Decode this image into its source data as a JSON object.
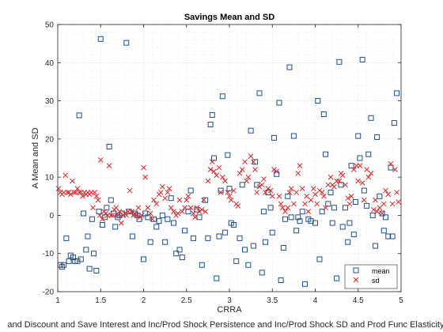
{
  "chart_data": {
    "type": "scatter",
    "title": "Savings Mean and SD",
    "xlabel": "CRRA",
    "xlabel2": "and Discount and Save Interest and Inc/Prod Shock Persistence and Inc/Prod Shock SD and Prod Func Elasticity a",
    "ylabel": "A Mean and SD",
    "xlim": [
      1,
      5
    ],
    "ylim": [
      -20,
      50
    ],
    "x_ticks": [
      "1",
      "1.5",
      "2",
      "2.5",
      "3",
      "3.5",
      "4",
      "4.5",
      "5"
    ],
    "y_ticks": [
      "-20",
      "-10",
      "0",
      "10",
      "20",
      "30",
      "40",
      "50"
    ],
    "grid": "on (major and minor, dotted)",
    "legend_position": "bottom-right",
    "series": [
      {
        "name": "mean",
        "marker": "square",
        "color": "#1f4e8c",
        "points": [
          [
            1.03,
            -13
          ],
          [
            1.05,
            -13.5
          ],
          [
            1.07,
            -13
          ],
          [
            1.1,
            -6
          ],
          [
            1.13,
            -12
          ],
          [
            1.15,
            -10.5
          ],
          [
            1.18,
            -11
          ],
          [
            1.2,
            -12
          ],
          [
            1.23,
            -12
          ],
          [
            1.25,
            26.2
          ],
          [
            1.27,
            -11.5
          ],
          [
            1.3,
            0.5
          ],
          [
            1.33,
            -9
          ],
          [
            1.35,
            -5.5
          ],
          [
            1.37,
            -14
          ],
          [
            1.4,
            -1
          ],
          [
            1.42,
            -10
          ],
          [
            1.45,
            -14.5
          ],
          [
            1.48,
            1
          ],
          [
            1.5,
            46.2
          ],
          [
            1.52,
            -2.5
          ],
          [
            1.55,
            -0.5
          ],
          [
            1.57,
            2
          ],
          [
            1.6,
            18
          ],
          [
            1.62,
            4
          ],
          [
            1.65,
            0.5
          ],
          [
            1.67,
            -3
          ],
          [
            1.7,
            -0.5
          ],
          [
            1.72,
            0
          ],
          [
            1.75,
            0.5
          ],
          [
            1.8,
            45.2
          ],
          [
            1.83,
            1
          ],
          [
            1.87,
            -5.5
          ],
          [
            1.9,
            0.5
          ],
          [
            1.93,
            0
          ],
          [
            1.95,
            -1
          ],
          [
            2.0,
            -11.5
          ],
          [
            2.02,
            0.5
          ],
          [
            2.05,
            -0.5
          ],
          [
            2.08,
            -7
          ],
          [
            2.12,
            -1
          ],
          [
            2.15,
            -3
          ],
          [
            2.18,
            -1.5
          ],
          [
            2.22,
            0
          ],
          [
            2.25,
            -7
          ],
          [
            2.28,
            -1
          ],
          [
            2.32,
            4.5
          ],
          [
            2.35,
            -2
          ],
          [
            2.38,
            -10
          ],
          [
            2.42,
            -9
          ],
          [
            2.45,
            -11
          ],
          [
            2.48,
            -4
          ],
          [
            2.52,
            1
          ],
          [
            2.55,
            6.5
          ],
          [
            2.58,
            -6
          ],
          [
            2.62,
            1.5
          ],
          [
            2.65,
            -0.5
          ],
          [
            2.68,
            -13
          ],
          [
            2.72,
            4
          ],
          [
            2.75,
            -6
          ],
          [
            2.78,
            23.8
          ],
          [
            2.8,
            26.3
          ],
          [
            2.82,
            15
          ],
          [
            2.85,
            -16.5
          ],
          [
            2.88,
            -5.5
          ],
          [
            2.9,
            6.5
          ],
          [
            2.92,
            31.2
          ],
          [
            2.95,
            -4.5
          ],
          [
            2.98,
            15.8
          ],
          [
            3.0,
            7
          ],
          [
            3.02,
            -2
          ],
          [
            3.05,
            -2.5
          ],
          [
            3.08,
            -12
          ],
          [
            3.12,
            -6
          ],
          [
            3.15,
            8
          ],
          [
            3.18,
            -9
          ],
          [
            3.22,
            -13
          ],
          [
            3.25,
            22.2
          ],
          [
            3.28,
            -8
          ],
          [
            3.3,
            14
          ],
          [
            3.32,
            8
          ],
          [
            3.35,
            32
          ],
          [
            3.38,
            -15
          ],
          [
            3.4,
            1
          ],
          [
            3.42,
            -7
          ],
          [
            3.45,
            6
          ],
          [
            3.48,
            2
          ],
          [
            3.5,
            -4.5
          ],
          [
            3.52,
            20.3
          ],
          [
            3.55,
            10.8
          ],
          [
            3.58,
            29.5
          ],
          [
            3.6,
            -17
          ],
          [
            3.63,
            -8.5
          ],
          [
            3.65,
            -1
          ],
          [
            3.68,
            5
          ],
          [
            3.7,
            38.8
          ],
          [
            3.72,
            -0.5
          ],
          [
            3.75,
            20.8
          ],
          [
            3.78,
            -4
          ],
          [
            3.8,
            -0.5
          ],
          [
            3.82,
            -1.5
          ],
          [
            3.85,
            1
          ],
          [
            3.88,
            -18
          ],
          [
            3.92,
            -1
          ],
          [
            3.95,
            -1.5
          ],
          [
            4.0,
            -2
          ],
          [
            4.03,
            30
          ],
          [
            4.05,
            -11.5
          ],
          [
            4.08,
            1
          ],
          [
            4.1,
            26.5
          ],
          [
            4.12,
            16
          ],
          [
            4.15,
            3
          ],
          [
            4.18,
            6
          ],
          [
            4.2,
            -2
          ],
          [
            4.22,
            2
          ],
          [
            4.25,
            -16.5
          ],
          [
            4.28,
            40.2
          ],
          [
            4.3,
            8
          ],
          [
            4.32,
            -3
          ],
          [
            4.35,
            2
          ],
          [
            4.38,
            -7
          ],
          [
            4.4,
            -2
          ],
          [
            4.42,
            13
          ],
          [
            4.45,
            -5
          ],
          [
            4.47,
            3.5
          ],
          [
            4.5,
            20.8
          ],
          [
            4.52,
            15
          ],
          [
            4.55,
            40.8
          ],
          [
            4.57,
            6.5
          ],
          [
            4.6,
            2.5
          ],
          [
            4.62,
            16
          ],
          [
            4.65,
            25.5
          ],
          [
            4.67,
            0
          ],
          [
            4.7,
            -8
          ],
          [
            4.72,
            20.5
          ],
          [
            4.75,
            5
          ],
          [
            4.78,
            0.5
          ],
          [
            4.8,
            -4
          ],
          [
            4.82,
            -0.5
          ],
          [
            4.85,
            -5.5
          ],
          [
            4.88,
            12.5
          ],
          [
            4.9,
            -5.5
          ],
          [
            4.92,
            24.2
          ],
          [
            4.95,
            32
          ]
        ]
      },
      {
        "name": "sd",
        "marker": "x",
        "color": "#d62728",
        "points": [
          [
            1.01,
            7
          ],
          [
            1.03,
            6
          ],
          [
            1.05,
            5.5
          ],
          [
            1.07,
            6
          ],
          [
            1.09,
            10.5
          ],
          [
            1.11,
            6
          ],
          [
            1.13,
            6
          ],
          [
            1.15,
            5.5
          ],
          [
            1.17,
            9
          ],
          [
            1.19,
            6
          ],
          [
            1.21,
            6
          ],
          [
            1.23,
            7
          ],
          [
            1.25,
            6
          ],
          [
            1.27,
            6
          ],
          [
            1.29,
            5
          ],
          [
            1.31,
            6
          ],
          [
            1.33,
            5.5
          ],
          [
            1.35,
            6
          ],
          [
            1.37,
            5.5
          ],
          [
            1.39,
            6
          ],
          [
            1.41,
            2
          ],
          [
            1.43,
            6
          ],
          [
            1.45,
            5
          ],
          [
            1.47,
            4
          ],
          [
            1.49,
            0
          ],
          [
            1.5,
            14.5
          ],
          [
            1.52,
            -1
          ],
          [
            1.54,
            1
          ],
          [
            1.56,
            0.5
          ],
          [
            1.58,
            0
          ],
          [
            1.6,
            13
          ],
          [
            1.62,
            0
          ],
          [
            1.64,
            0
          ],
          [
            1.66,
            1.5
          ],
          [
            1.68,
            2
          ],
          [
            1.7,
            0
          ],
          [
            1.72,
            1
          ],
          [
            1.74,
            -2
          ],
          [
            1.76,
            0
          ],
          [
            1.78,
            0.5
          ],
          [
            1.8,
            0
          ],
          [
            1.82,
            1
          ],
          [
            1.84,
            6.5
          ],
          [
            1.86,
            1
          ],
          [
            1.88,
            0
          ],
          [
            1.9,
            0.5
          ],
          [
            1.92,
            0
          ],
          [
            1.94,
            2
          ],
          [
            1.96,
            -0.5
          ],
          [
            1.98,
            0
          ],
          [
            2.0,
            12.5
          ],
          [
            2.02,
            10
          ],
          [
            2.05,
            2
          ],
          [
            2.08,
            0.5
          ],
          [
            2.1,
            -1
          ],
          [
            2.12,
            4
          ],
          [
            2.15,
            3
          ],
          [
            2.18,
            5.5
          ],
          [
            2.2,
            6
          ],
          [
            2.22,
            7.5
          ],
          [
            2.25,
            4.5
          ],
          [
            2.28,
            6
          ],
          [
            2.3,
            7
          ],
          [
            2.32,
            2
          ],
          [
            2.35,
            1
          ],
          [
            2.38,
            0
          ],
          [
            2.4,
            0.5
          ],
          [
            2.42,
            4
          ],
          [
            2.45,
            1
          ],
          [
            2.48,
            2
          ],
          [
            2.5,
            4
          ],
          [
            2.52,
            5
          ],
          [
            2.55,
            2
          ],
          [
            2.58,
            0.5
          ],
          [
            2.6,
            -0.5
          ],
          [
            2.62,
            2
          ],
          [
            2.65,
            1
          ],
          [
            2.68,
            1.5
          ],
          [
            2.7,
            4
          ],
          [
            2.72,
            1
          ],
          [
            2.75,
            9
          ],
          [
            2.78,
            12
          ],
          [
            2.8,
            14
          ],
          [
            2.82,
            11.5
          ],
          [
            2.85,
            10.5
          ],
          [
            2.88,
            12.5
          ],
          [
            2.9,
            6
          ],
          [
            2.92,
            10
          ],
          [
            2.95,
            9
          ],
          [
            2.98,
            6
          ],
          [
            3.0,
            5
          ],
          [
            3.02,
            4
          ],
          [
            3.05,
            6.5
          ],
          [
            3.08,
            3
          ],
          [
            3.1,
            2.5
          ],
          [
            3.12,
            11
          ],
          [
            3.15,
            12
          ],
          [
            3.18,
            14
          ],
          [
            3.2,
            9
          ],
          [
            3.22,
            10
          ],
          [
            3.25,
            15.5
          ],
          [
            3.28,
            14
          ],
          [
            3.3,
            12
          ],
          [
            3.32,
            6
          ],
          [
            3.35,
            7.5
          ],
          [
            3.38,
            8
          ],
          [
            3.4,
            9.5
          ],
          [
            3.42,
            6
          ],
          [
            3.45,
            7
          ],
          [
            3.48,
            6.5
          ],
          [
            3.5,
            5
          ],
          [
            3.52,
            12
          ],
          [
            3.55,
            11.5
          ],
          [
            3.58,
            5
          ],
          [
            3.6,
            3
          ],
          [
            3.62,
            2
          ],
          [
            3.65,
            1
          ],
          [
            3.68,
            2
          ],
          [
            3.7,
            6
          ],
          [
            3.72,
            7
          ],
          [
            3.75,
            3
          ],
          [
            3.78,
            6
          ],
          [
            3.8,
            11
          ],
          [
            3.82,
            13
          ],
          [
            3.85,
            7
          ],
          [
            3.88,
            3
          ],
          [
            3.9,
            5
          ],
          [
            3.92,
            1
          ],
          [
            3.95,
            4
          ],
          [
            3.98,
            7
          ],
          [
            4.0,
            5.5
          ],
          [
            4.02,
            3
          ],
          [
            4.05,
            6.5
          ],
          [
            4.08,
            6
          ],
          [
            4.1,
            5
          ],
          [
            4.12,
            2
          ],
          [
            4.15,
            8
          ],
          [
            4.18,
            10
          ],
          [
            4.2,
            8
          ],
          [
            4.22,
            7.5
          ],
          [
            4.25,
            9
          ],
          [
            4.28,
            9
          ],
          [
            4.3,
            11
          ],
          [
            4.32,
            10.5
          ],
          [
            4.35,
            8
          ],
          [
            4.38,
            4.5
          ],
          [
            4.4,
            3
          ],
          [
            4.42,
            5
          ],
          [
            4.45,
            12
          ],
          [
            4.48,
            13
          ],
          [
            4.5,
            9
          ],
          [
            4.52,
            13
          ],
          [
            4.55,
            8.5
          ],
          [
            4.57,
            4
          ],
          [
            4.6,
            12
          ],
          [
            4.62,
            10
          ],
          [
            4.65,
            11
          ],
          [
            4.68,
            1.5
          ],
          [
            4.7,
            4
          ],
          [
            4.72,
            1
          ],
          [
            4.75,
            2
          ],
          [
            4.78,
            0.5
          ],
          [
            4.8,
            3
          ],
          [
            4.82,
            6.5
          ],
          [
            4.85,
            5.5
          ],
          [
            4.88,
            13.5
          ],
          [
            4.9,
            3
          ],
          [
            4.93,
            12
          ],
          [
            4.95,
            6
          ],
          [
            4.97,
            3.5
          ]
        ]
      }
    ]
  }
}
